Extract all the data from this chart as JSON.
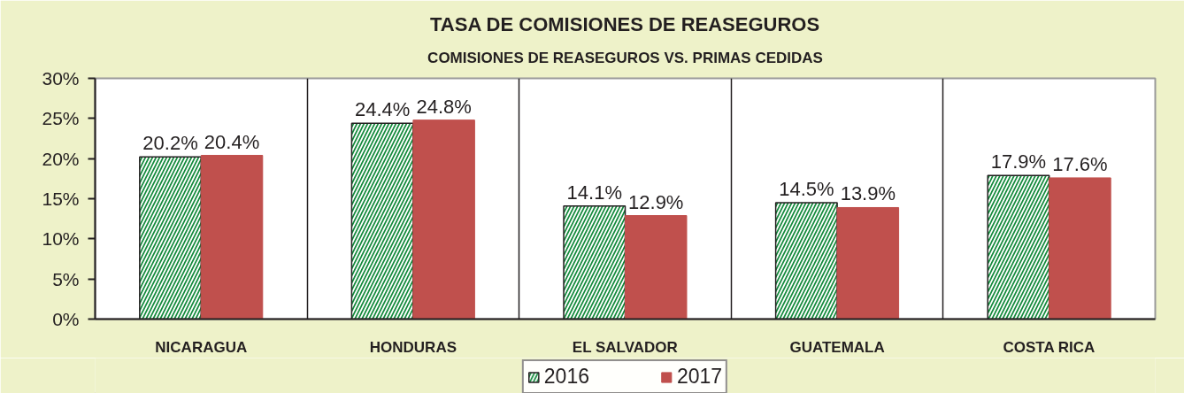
{
  "chart_data": {
    "type": "bar",
    "title": "TASA DE COMISIONES DE REASEGUROS",
    "subtitle": "COMISIONES DE REASEGUROS VS. PRIMAS CEDIDAS",
    "categories": [
      "NICARAGUA",
      "HONDURAS",
      "EL SALVADOR",
      "GUATEMALA",
      "COSTA RICA"
    ],
    "series": [
      {
        "name": "2016",
        "color": "#138a3c",
        "values": [
          20.2,
          24.4,
          14.1,
          14.5,
          17.9
        ],
        "value_labels": [
          "20.2%",
          "24.4%",
          "14.1%",
          "14.5%",
          "17.9%"
        ]
      },
      {
        "name": "2017",
        "color": "#c0504d",
        "values": [
          20.4,
          24.8,
          12.9,
          13.9,
          17.6
        ],
        "value_labels": [
          "20.4%",
          "24.8%",
          "12.9%",
          "13.9%",
          "17.6%"
        ]
      }
    ],
    "ylim": [
      0,
      30
    ],
    "yticks": [
      {
        "value": 0,
        "label": "0%"
      },
      {
        "value": 5,
        "label": "5%"
      },
      {
        "value": 10,
        "label": "10%"
      },
      {
        "value": 15,
        "label": "15%"
      },
      {
        "value": 20,
        "label": "20%"
      },
      {
        "value": 25,
        "label": "25%"
      },
      {
        "value": 30,
        "label": "30%"
      }
    ],
    "grid": "x",
    "legend": "bottom"
  }
}
